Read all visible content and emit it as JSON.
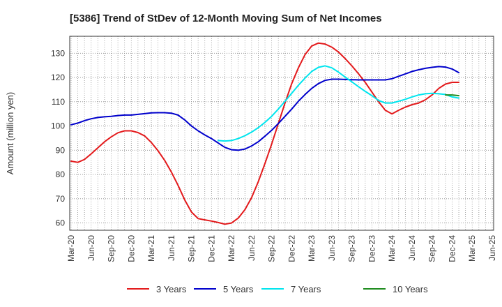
{
  "chart_data": {
    "type": "line",
    "title": "[5386]  Trend of StDev of 12-Month Moving Sum of Net Incomes",
    "ylabel": "Amount (million yen)",
    "xlabel": "",
    "ylim": [
      57,
      137
    ],
    "yticks": [
      60,
      70,
      80,
      90,
      100,
      110,
      120,
      130
    ],
    "xticks": [
      "Mar-20",
      "Jun-20",
      "Sep-20",
      "Dec-20",
      "Mar-21",
      "Jun-21",
      "Sep-21",
      "Dec-21",
      "Mar-22",
      "Jun-22",
      "Sep-22",
      "Dec-22",
      "Mar-23",
      "Jun-23",
      "Sep-23",
      "Dec-23",
      "Mar-24",
      "Jun-24",
      "Sep-24",
      "Dec-24",
      "Mar-25",
      "Jun-25"
    ],
    "grid": true,
    "legend_position": "bottom",
    "series": [
      {
        "name": "3 Years",
        "color": "#e31a1c",
        "start_index": 0,
        "values": [
          85.5,
          85.0,
          86.2,
          88.5,
          91.0,
          93.5,
          95.5,
          97.2,
          98.0,
          98.0,
          97.3,
          95.9,
          93.2,
          89.8,
          85.8,
          81.0,
          75.5,
          69.5,
          64.5,
          61.8,
          61.3,
          60.8,
          60.2,
          59.5,
          60.0,
          62.0,
          65.5,
          70.5,
          77.0,
          84.5,
          92.5,
          101.0,
          109.5,
          117.5,
          124.0,
          129.5,
          133.0,
          134.2,
          133.8,
          132.5,
          130.5,
          127.8,
          124.8,
          121.5,
          118.0,
          114.0,
          110.0,
          106.5,
          105.0,
          106.5,
          107.8,
          108.8,
          109.5,
          110.8,
          112.8,
          115.5,
          117.3,
          118.0,
          118.0
        ]
      },
      {
        "name": "5 Years",
        "color": "#0000cc",
        "start_index": 0,
        "values": [
          100.5,
          101.2,
          102.2,
          103.0,
          103.5,
          103.8,
          104.0,
          104.3,
          104.5,
          104.5,
          104.8,
          105.1,
          105.4,
          105.5,
          105.5,
          105.3,
          104.5,
          102.5,
          100.0,
          98.0,
          96.3,
          94.8,
          93.0,
          91.2,
          90.2,
          90.0,
          90.5,
          91.8,
          93.5,
          95.8,
          98.2,
          101.0,
          104.0,
          107.0,
          110.2,
          113.0,
          115.5,
          117.5,
          118.8,
          119.3,
          119.3,
          119.2,
          119.1,
          119.0,
          119.0,
          119.0,
          119.0,
          119.0,
          119.5,
          120.5,
          121.5,
          122.5,
          123.2,
          123.8,
          124.2,
          124.5,
          124.3,
          123.5,
          122.0
        ]
      },
      {
        "name": "7 Years",
        "color": "#00e5ee",
        "start_index": 22,
        "values": [
          94.0,
          93.8,
          94.0,
          94.8,
          96.0,
          97.5,
          99.3,
          101.5,
          104.0,
          107.0,
          110.2,
          113.5,
          116.8,
          119.8,
          122.5,
          124.2,
          124.8,
          124.0,
          122.2,
          120.2,
          118.2,
          116.2,
          114.3,
          112.5,
          110.5,
          109.5,
          109.5,
          110.2,
          111.0,
          112.0,
          112.8,
          113.3,
          113.5,
          113.3,
          113.0,
          112.0,
          111.5
        ]
      },
      {
        "name": "10 Years",
        "color": "#1e8b1e",
        "start_index": 56,
        "values": [
          112.8,
          112.8,
          112.5
        ]
      }
    ]
  }
}
